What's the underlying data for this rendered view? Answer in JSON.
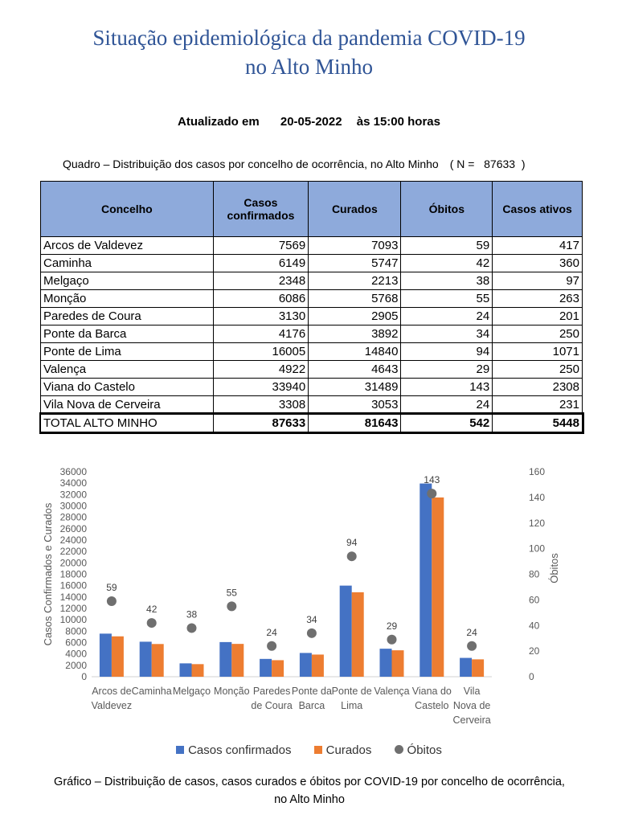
{
  "title_line1": "Situação epidemiológica da pandemia COVID-19",
  "title_line2": "no Alto Minho",
  "updated": {
    "label": "Atualizado em",
    "date": "20-05-2022",
    "time": "às 15:00 horas"
  },
  "table_caption": {
    "text": "Quadro – Distribuição dos casos por concelho de ocorrência, no Alto Minho",
    "n": "( N =   87633  )"
  },
  "table": {
    "headers": [
      "Concelho",
      "Casos confirmados",
      "Curados",
      "Óbitos",
      "Casos ativos"
    ],
    "rows": [
      [
        "Arcos de Valdevez",
        "7569",
        "7093",
        "59",
        "417"
      ],
      [
        "Caminha",
        "6149",
        "5747",
        "42",
        "360"
      ],
      [
        "Melgaço",
        "2348",
        "2213",
        "38",
        "97"
      ],
      [
        "Monção",
        "6086",
        "5768",
        "55",
        "263"
      ],
      [
        "Paredes de Coura",
        "3130",
        "2905",
        "24",
        "201"
      ],
      [
        "Ponte da Barca",
        "4176",
        "3892",
        "34",
        "250"
      ],
      [
        "Ponte de Lima",
        "16005",
        "14840",
        "94",
        "1071"
      ],
      [
        "Valença",
        "4922",
        "4643",
        "29",
        "250"
      ],
      [
        "Viana do Castelo",
        "33940",
        "31489",
        "143",
        "2308"
      ],
      [
        "Vila Nova de Cerveira",
        "3308",
        "3053",
        "24",
        "231"
      ]
    ],
    "total": [
      "TOTAL ALTO MINHO",
      "87633",
      "81643",
      "542",
      "5448"
    ]
  },
  "chart_data": {
    "type": "bar",
    "categories": [
      "Arcos de Valdevez",
      "Caminha",
      "Melgaço",
      "Monção",
      "Paredes de Coura",
      "Ponte da Barca",
      "Ponte de Lima",
      "Valença",
      "Viana do Castelo",
      "Vila Nova de Cerveira"
    ],
    "category_label_lines": [
      [
        "Arcos de",
        "Valdevez"
      ],
      [
        "Caminha"
      ],
      [
        "Melgaço"
      ],
      [
        "Monção"
      ],
      [
        "Paredes",
        "de Coura"
      ],
      [
        "Ponte da",
        "Barca"
      ],
      [
        "Ponte de",
        "Lima"
      ],
      [
        "Valença"
      ],
      [
        "Viana do",
        "Castelo"
      ],
      [
        "Vila",
        "Nova de",
        "Cerveira"
      ]
    ],
    "series": [
      {
        "name": "Casos confirmados",
        "type": "bar",
        "axis": "left",
        "color": "#4472c4",
        "values": [
          7569,
          6149,
          2348,
          6086,
          3130,
          4176,
          16005,
          4922,
          33940,
          3308
        ]
      },
      {
        "name": "Curados",
        "type": "bar",
        "axis": "left",
        "color": "#ed7d31",
        "values": [
          7093,
          5747,
          2213,
          5768,
          2905,
          3892,
          14840,
          4643,
          31489,
          3053
        ]
      },
      {
        "name": "Óbitos",
        "type": "scatter",
        "axis": "right",
        "color": "#6f6f6f",
        "values": [
          59,
          42,
          38,
          55,
          24,
          34,
          94,
          29,
          143,
          24
        ]
      }
    ],
    "ylabel": "Casos Confirmados e Curados",
    "y2label": "Óbitos",
    "ylim": [
      0,
      36000
    ],
    "ytick_step": 2000,
    "y2lim": [
      0,
      160
    ],
    "y2tick_step": 20,
    "grid": false,
    "legend": "bottom"
  },
  "chart_caption": "Gráfico – Distribuição de casos, casos curados e óbitos por COVID-19 por concelho de ocorrência, no Alto Minho"
}
